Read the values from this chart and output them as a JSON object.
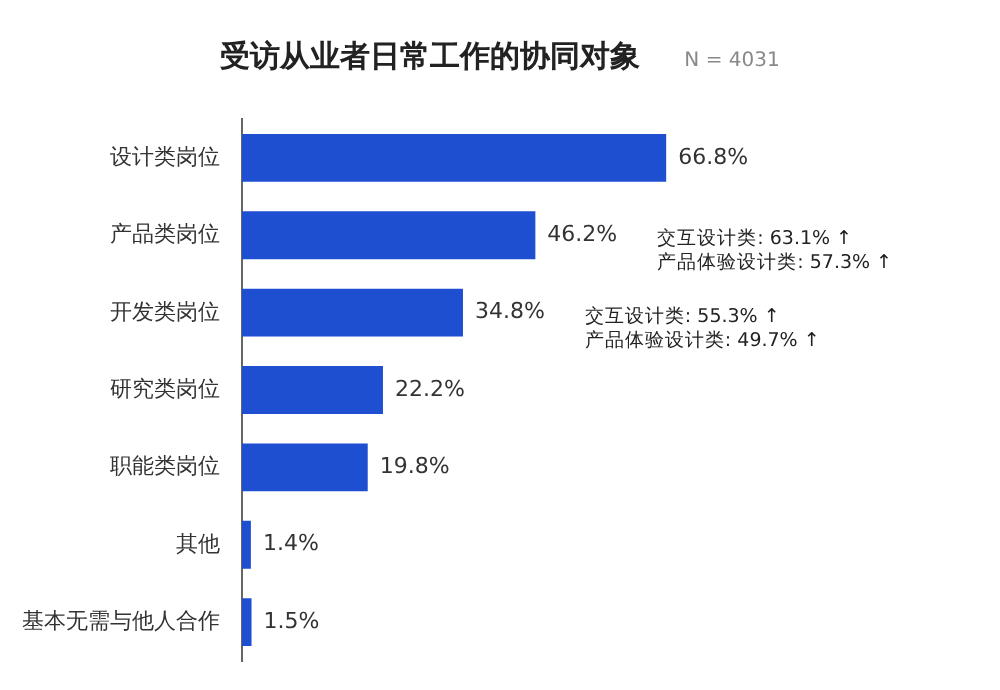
{
  "chart_data": {
    "type": "bar",
    "orientation": "horizontal",
    "title": "受访从业者日常工作的协同对象",
    "subtitle": "N = 4031",
    "categories": [
      "设计类岗位",
      "产品类岗位",
      "开发类岗位",
      "研究类岗位",
      "职能类岗位",
      "其他",
      "基本无需与他人合作"
    ],
    "values": [
      66.8,
      46.2,
      34.8,
      22.2,
      19.8,
      1.4,
      1.5
    ],
    "color": "#1f4fd1",
    "grid": false,
    "legend": false,
    "value_labels": [
      "66.8%",
      "46.2%",
      "34.8%",
      "22.2%",
      "19.8%",
      "1.4%",
      "1.5%"
    ],
    "annotations": [
      "交互设计类: 63.1% ↑",
      "产品体验设计类: 57.3% ↑",
      "交互设计类: 55.3% ↑",
      "产品体验设计类: 49.7% ↑"
    ]
  }
}
